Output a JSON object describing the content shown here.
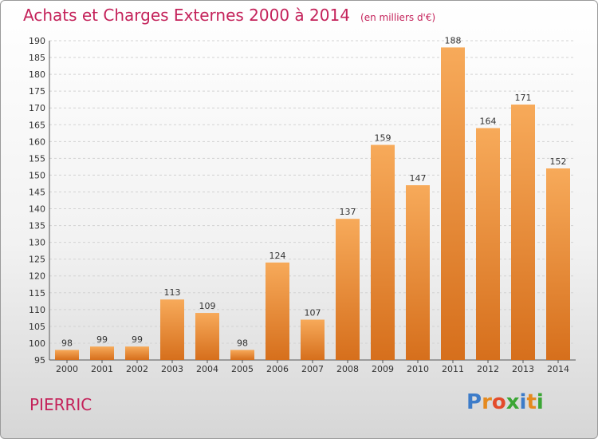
{
  "title": "Achats et Charges Externes 2000 à 2014",
  "unit": "(en milliers d'€)",
  "place": "PIERRIC",
  "logo": {
    "text": "Proxiti",
    "colors": [
      "#3d7cc9",
      "#e58a1f",
      "#e34b2b",
      "#3ba635",
      "#3d7cc9",
      "#e58a1f",
      "#3ba635"
    ]
  },
  "colors": {
    "bar_top": "#f7aa5a",
    "bar_bottom": "#d66f1c",
    "title": "#c4225a"
  },
  "chart_data": {
    "type": "bar",
    "title": "Achats et Charges Externes 2000 à 2014",
    "categories": [
      "2000",
      "2001",
      "2002",
      "2003",
      "2004",
      "2005",
      "2006",
      "2007",
      "2008",
      "2009",
      "2010",
      "2011",
      "2012",
      "2013",
      "2014"
    ],
    "values": [
      98,
      99,
      99,
      113,
      109,
      98,
      124,
      107,
      137,
      159,
      147,
      188,
      164,
      171,
      152
    ],
    "ylim": [
      95,
      190
    ],
    "yticks": [
      95,
      100,
      105,
      110,
      115,
      120,
      125,
      130,
      135,
      140,
      145,
      150,
      155,
      160,
      165,
      170,
      175,
      180,
      185,
      190
    ],
    "grid": true,
    "legend": "none"
  }
}
